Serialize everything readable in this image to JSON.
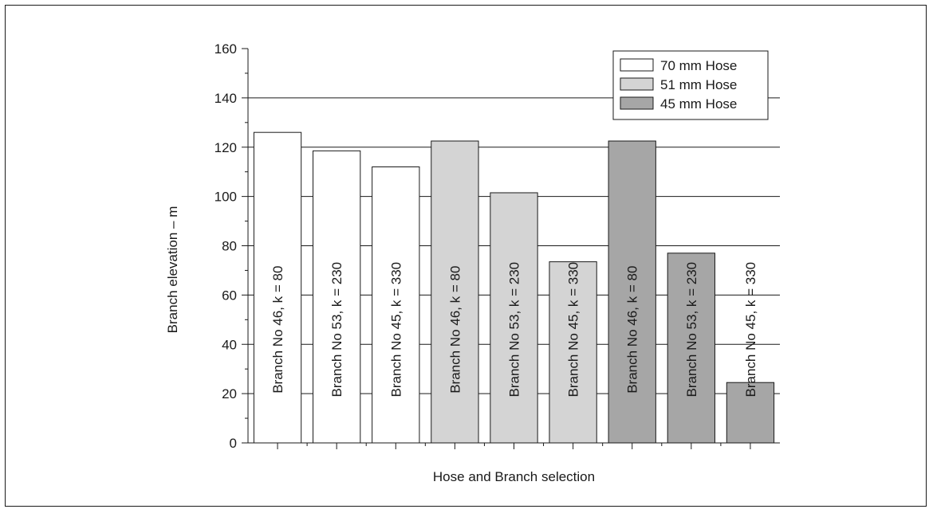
{
  "chart_data": {
    "type": "bar",
    "xlabel": "Hose and Branch selection",
    "ylabel": "Branch elevation – m",
    "ylim": [
      0,
      160
    ],
    "yticks": [
      "0",
      "20",
      "40",
      "60",
      "80",
      "100",
      "120",
      "140",
      "160"
    ],
    "grid": true,
    "legend_position": "top-right",
    "legend": [
      {
        "label": "70 mm Hose",
        "color": "#ffffff"
      },
      {
        "label": "51 mm Hose",
        "color": "#d4d4d4"
      },
      {
        "label": "45 mm Hose",
        "color": "#a6a6a6"
      }
    ],
    "bars": [
      {
        "label": "Branch No 46, k = 80",
        "value": 126,
        "hose": 0
      },
      {
        "label": "Branch No 53, k = 230",
        "value": 118.5,
        "hose": 0
      },
      {
        "label": "Branch No 45, k = 330",
        "value": 112,
        "hose": 0
      },
      {
        "label": "Branch No 46, k = 80",
        "value": 122.5,
        "hose": 1
      },
      {
        "label": "Branch No 53, k = 230",
        "value": 101.5,
        "hose": 1
      },
      {
        "label": "Branch No 45, k = 330",
        "value": 73.5,
        "hose": 1
      },
      {
        "label": "Branch No 46, k = 80",
        "value": 122.5,
        "hose": 2
      },
      {
        "label": "Branch No 53, k = 230",
        "value": 77,
        "hose": 2
      },
      {
        "label": "Branch No 45, k = 330",
        "value": 24.5,
        "hose": 2
      }
    ]
  }
}
